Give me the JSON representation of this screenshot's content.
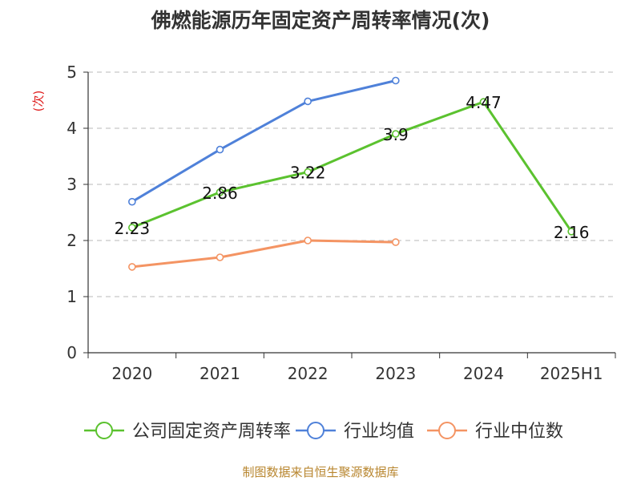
{
  "chart_data": {
    "type": "line",
    "title": "佛燃能源历年固定资产周转率情况(次)",
    "ylabel": "(次)",
    "categories": [
      "2020",
      "2021",
      "2022",
      "2023",
      "2024",
      "2025H1"
    ],
    "ylim": [
      0,
      5
    ],
    "yticks": [
      "0",
      "1",
      "2",
      "3",
      "4",
      "5"
    ],
    "grid": true,
    "legend_position": "bottom",
    "series": [
      {
        "name": "公司固定资产周转率",
        "color": "#5bc22f",
        "values": [
          2.23,
          2.86,
          3.22,
          3.9,
          4.47,
          2.16
        ],
        "labels": [
          "2.23",
          "2.86",
          "3.22",
          "3.9",
          "4.47",
          "2.16"
        ]
      },
      {
        "name": "行业均值",
        "color": "#4f81d9",
        "values": [
          2.69,
          3.62,
          4.48,
          4.85,
          null,
          null
        ]
      },
      {
        "name": "行业中位数",
        "color": "#f49463",
        "values": [
          1.53,
          1.7,
          2.0,
          1.97,
          null,
          null
        ]
      }
    ]
  },
  "footer": {
    "source": "制图数据来自恒生聚源数据库"
  }
}
